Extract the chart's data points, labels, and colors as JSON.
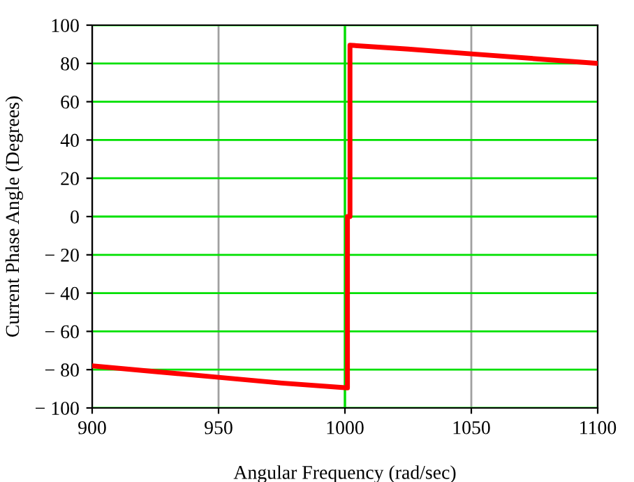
{
  "chart_data": {
    "type": "line",
    "xlabel": "Angular Frequency (rad/sec)",
    "ylabel": "Current Phase Angle (Degrees)",
    "x": [
      900,
      925,
      950,
      975,
      1001,
      1001,
      1002,
      1002,
      1025,
      1050,
      1075,
      1100
    ],
    "series": [
      {
        "color": "#ff0000",
        "values": [
          -78,
          -81,
          -84,
          -87,
          -89.5,
          0,
          0,
          89.5,
          87.5,
          85,
          82.5,
          80
        ]
      }
    ],
    "xlim": [
      900,
      1100
    ],
    "xticks": [
      900,
      950,
      1000,
      1050,
      1100
    ],
    "ylim": [
      -100,
      100
    ],
    "yticks": [
      {
        "value": -100,
        "label": "− 100"
      },
      {
        "value": -80,
        "label": "− 80"
      },
      {
        "value": -60,
        "label": "− 60"
      },
      {
        "value": -40,
        "label": "− 40"
      },
      {
        "value": -20,
        "label": "− 20"
      },
      0,
      20,
      40,
      60,
      80,
      100
    ],
    "grid": true,
    "marker": "none",
    "line_style": "solid",
    "ref_lines": [
      {
        "axis": "x",
        "value": 1000,
        "color": "#00e000"
      }
    ]
  }
}
